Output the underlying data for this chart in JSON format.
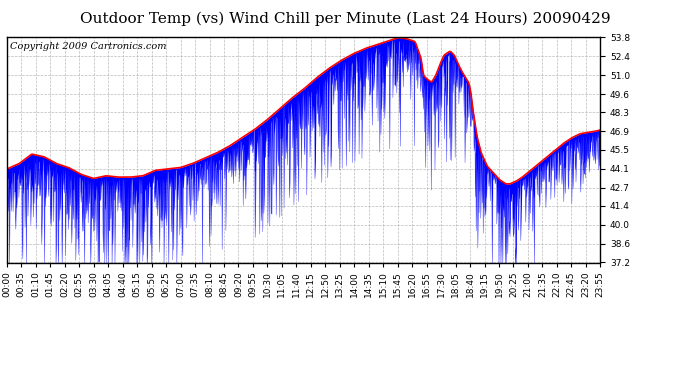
{
  "title": "Outdoor Temp (vs) Wind Chill per Minute (Last 24 Hours) 20090429",
  "copyright_text": "Copyright 2009 Cartronics.com",
  "y_ticks": [
    37.2,
    38.6,
    40.0,
    41.4,
    42.7,
    44.1,
    45.5,
    46.9,
    48.3,
    49.6,
    51.0,
    52.4,
    53.8
  ],
  "ylim": [
    37.2,
    53.8
  ],
  "x_tick_labels": [
    "00:00",
    "00:35",
    "01:10",
    "01:45",
    "02:20",
    "02:55",
    "03:30",
    "04:05",
    "04:40",
    "05:15",
    "05:50",
    "06:25",
    "07:00",
    "07:35",
    "08:10",
    "08:45",
    "09:20",
    "09:55",
    "10:30",
    "11:05",
    "11:40",
    "12:15",
    "12:50",
    "13:25",
    "14:00",
    "14:35",
    "15:10",
    "15:45",
    "16:20",
    "16:55",
    "17:30",
    "18:05",
    "18:40",
    "19:15",
    "19:50",
    "20:25",
    "21:00",
    "21:35",
    "22:10",
    "22:45",
    "23:20",
    "23:55"
  ],
  "background_color": "#ffffff",
  "plot_bg_color": "#ffffff",
  "grid_color": "#aaaaaa",
  "outer_border_color": "#000000",
  "title_fontsize": 11,
  "copyright_fontsize": 7,
  "tick_label_fontsize": 6.5
}
